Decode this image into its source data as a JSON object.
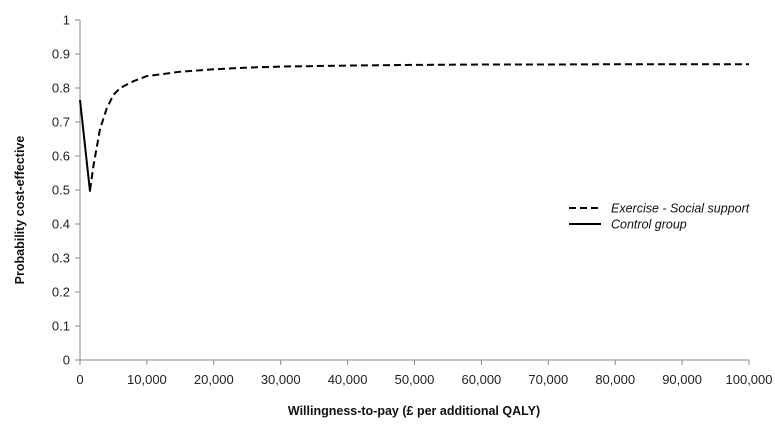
{
  "chart_data": {
    "type": "line",
    "title": "",
    "xlabel": "Willingness-to-pay (£ per additional QALY)",
    "ylabel": "Probability cost-effective",
    "xlim": [
      0,
      100000
    ],
    "ylim": [
      0,
      1
    ],
    "x_ticks": [
      0,
      10000,
      20000,
      30000,
      40000,
      50000,
      60000,
      70000,
      80000,
      90000,
      100000
    ],
    "x_tick_labels": [
      "0",
      "10,000",
      "20,000",
      "30,000",
      "40,000",
      "50,000",
      "60,000",
      "70,000",
      "80,000",
      "90,000",
      "100,000"
    ],
    "y_ticks": [
      0,
      0.1,
      0.2,
      0.3,
      0.4,
      0.5,
      0.6,
      0.7,
      0.8,
      0.9,
      1
    ],
    "y_tick_labels": [
      "0",
      "0.1",
      "0.2",
      "0.3",
      "0.4",
      "0.5",
      "0.6",
      "0.7",
      "0.8",
      "0.9",
      "1"
    ],
    "grid": false,
    "legend_position": "right",
    "series": [
      {
        "name": "Exercise - Social support",
        "style": "dashed",
        "color": "#000000",
        "x": [
          1500,
          2000,
          3000,
          4000,
          5000,
          6000,
          8000,
          10000,
          12000,
          15000,
          20000,
          25000,
          30000,
          40000,
          50000,
          60000,
          70000,
          80000,
          90000,
          100000
        ],
        "y": [
          0.5,
          0.57,
          0.68,
          0.74,
          0.78,
          0.8,
          0.82,
          0.835,
          0.84,
          0.848,
          0.855,
          0.86,
          0.863,
          0.866,
          0.868,
          0.869,
          0.869,
          0.87,
          0.87,
          0.87
        ]
      },
      {
        "name": "Control group",
        "style": "solid",
        "color": "#000000",
        "x": [
          0,
          1500
        ],
        "y": [
          0.765,
          0.495
        ]
      }
    ]
  }
}
